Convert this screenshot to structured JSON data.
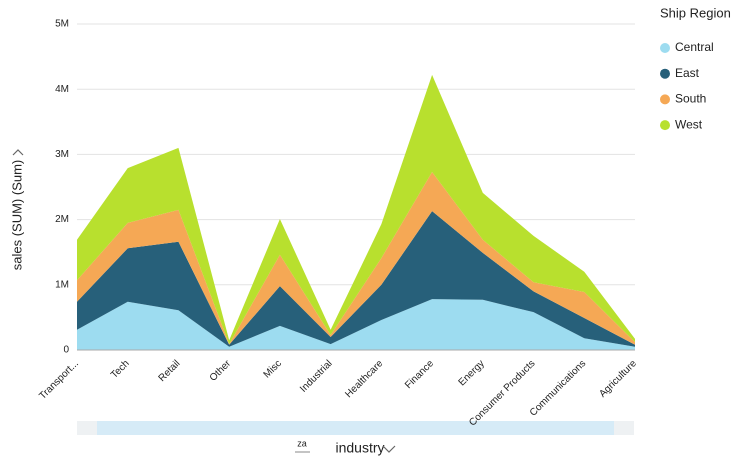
{
  "chart_data": {
    "type": "stacked_area",
    "y_label": "sales (SUM) (Sum)",
    "x_label": "industry",
    "x_sort_icon": "za",
    "legend_title": "Ship Region",
    "legend": "right",
    "categories": [
      "Transport...",
      "Tech",
      "Retail",
      "Other",
      "Misc",
      "Industrial",
      "Healthcare",
      "Finance",
      "Energy",
      "Consumer Products",
      "Communications",
      "Agriculture"
    ],
    "series": [
      {
        "name": "Central",
        "color": "#9ddcf0",
        "values": [
          310000,
          740000,
          610000,
          50000,
          370000,
          90000,
          460000,
          780000,
          770000,
          580000,
          180000,
          50000
        ]
      },
      {
        "name": "East",
        "color": "#27607a",
        "values": [
          430000,
          820000,
          1050000,
          30000,
          610000,
          110000,
          540000,
          1350000,
          720000,
          320000,
          310000,
          30000
        ]
      },
      {
        "name": "South",
        "color": "#f5a855",
        "values": [
          330000,
          390000,
          490000,
          10000,
          480000,
          30000,
          410000,
          600000,
          200000,
          140000,
          400000,
          40000
        ]
      },
      {
        "name": "West",
        "color": "#b8e02e",
        "values": [
          620000,
          840000,
          950000,
          60000,
          550000,
          80000,
          520000,
          1490000,
          720000,
          710000,
          310000,
          50000
        ]
      }
    ],
    "ylim": [
      0,
      5000000
    ],
    "yticks": [
      0,
      {
        "value": 1000000,
        "label": "1M"
      },
      {
        "value": 2000000,
        "label": "2M"
      },
      {
        "value": 3000000,
        "label": "3M"
      },
      {
        "value": 4000000,
        "label": "4M"
      },
      {
        "value": 5000000,
        "label": "5M"
      }
    ],
    "grid": true
  }
}
